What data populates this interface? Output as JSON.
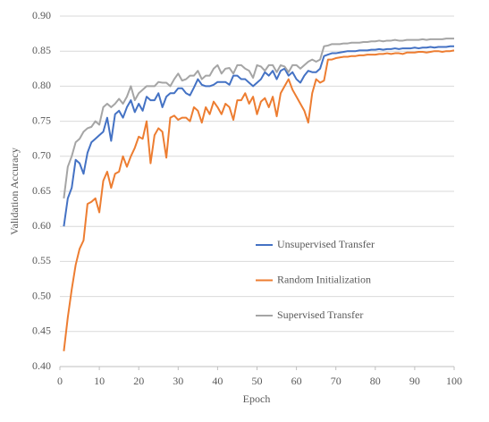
{
  "chart_data": {
    "type": "line",
    "x_label": "Epoch",
    "y_label": "Validation Accuracy",
    "x": [
      1,
      2,
      3,
      4,
      5,
      6,
      7,
      8,
      9,
      10,
      11,
      12,
      13,
      14,
      15,
      16,
      17,
      18,
      19,
      20,
      21,
      22,
      23,
      24,
      25,
      26,
      27,
      28,
      29,
      30,
      31,
      32,
      33,
      34,
      35,
      36,
      37,
      38,
      39,
      40,
      41,
      42,
      43,
      44,
      45,
      46,
      47,
      48,
      49,
      50,
      51,
      52,
      53,
      54,
      55,
      56,
      57,
      58,
      59,
      60,
      61,
      62,
      63,
      64,
      65,
      66,
      67,
      68,
      69,
      70,
      71,
      72,
      73,
      74,
      75,
      76,
      77,
      78,
      79,
      80,
      81,
      82,
      83,
      84,
      85,
      86,
      87,
      88,
      89,
      90,
      91,
      92,
      93,
      94,
      95,
      96,
      97,
      98,
      99,
      100
    ],
    "series": [
      {
        "name": "Unsupervised Transfer",
        "color": "#4472c4",
        "values": [
          0.6,
          0.64,
          0.655,
          0.695,
          0.69,
          0.675,
          0.705,
          0.72,
          0.725,
          0.73,
          0.735,
          0.755,
          0.722,
          0.76,
          0.765,
          0.755,
          0.77,
          0.78,
          0.763,
          0.775,
          0.765,
          0.785,
          0.78,
          0.78,
          0.79,
          0.77,
          0.785,
          0.79,
          0.79,
          0.797,
          0.797,
          0.79,
          0.787,
          0.798,
          0.81,
          0.802,
          0.8,
          0.8,
          0.802,
          0.806,
          0.806,
          0.806,
          0.802,
          0.815,
          0.815,
          0.81,
          0.81,
          0.805,
          0.8,
          0.805,
          0.81,
          0.82,
          0.815,
          0.822,
          0.81,
          0.822,
          0.825,
          0.815,
          0.82,
          0.81,
          0.805,
          0.815,
          0.822,
          0.82,
          0.82,
          0.825,
          0.843,
          0.845,
          0.847,
          0.847,
          0.848,
          0.849,
          0.85,
          0.85,
          0.85,
          0.851,
          0.851,
          0.851,
          0.852,
          0.852,
          0.853,
          0.852,
          0.853,
          0.853,
          0.854,
          0.853,
          0.854,
          0.854,
          0.854,
          0.855,
          0.854,
          0.855,
          0.855,
          0.856,
          0.855,
          0.856,
          0.856,
          0.856,
          0.857,
          0.857
        ]
      },
      {
        "name": "Random Initialization",
        "color": "#ed7d31",
        "values": [
          0.422,
          0.47,
          0.51,
          0.545,
          0.568,
          0.58,
          0.632,
          0.635,
          0.64,
          0.62,
          0.665,
          0.678,
          0.655,
          0.675,
          0.678,
          0.7,
          0.685,
          0.7,
          0.712,
          0.728,
          0.725,
          0.75,
          0.69,
          0.73,
          0.74,
          0.735,
          0.698,
          0.755,
          0.758,
          0.752,
          0.755,
          0.755,
          0.75,
          0.77,
          0.765,
          0.748,
          0.77,
          0.76,
          0.778,
          0.77,
          0.76,
          0.775,
          0.77,
          0.752,
          0.78,
          0.78,
          0.79,
          0.775,
          0.785,
          0.76,
          0.778,
          0.783,
          0.77,
          0.785,
          0.757,
          0.79,
          0.8,
          0.81,
          0.795,
          0.785,
          0.775,
          0.765,
          0.748,
          0.79,
          0.81,
          0.805,
          0.808,
          0.838,
          0.838,
          0.84,
          0.841,
          0.842,
          0.842,
          0.843,
          0.843,
          0.844,
          0.844,
          0.845,
          0.845,
          0.845,
          0.846,
          0.846,
          0.847,
          0.846,
          0.847,
          0.847,
          0.846,
          0.848,
          0.848,
          0.848,
          0.849,
          0.849,
          0.848,
          0.849,
          0.85,
          0.85,
          0.849,
          0.85,
          0.85,
          0.851
        ]
      },
      {
        "name": "Supervised Transfer",
        "color": "#a5a5a5",
        "values": [
          0.64,
          0.685,
          0.7,
          0.72,
          0.725,
          0.735,
          0.74,
          0.742,
          0.75,
          0.745,
          0.77,
          0.775,
          0.77,
          0.775,
          0.782,
          0.775,
          0.785,
          0.8,
          0.78,
          0.79,
          0.795,
          0.8,
          0.8,
          0.8,
          0.806,
          0.805,
          0.805,
          0.8,
          0.81,
          0.818,
          0.808,
          0.81,
          0.815,
          0.815,
          0.822,
          0.81,
          0.815,
          0.815,
          0.825,
          0.83,
          0.818,
          0.825,
          0.826,
          0.818,
          0.83,
          0.83,
          0.825,
          0.822,
          0.812,
          0.83,
          0.828,
          0.822,
          0.83,
          0.83,
          0.82,
          0.83,
          0.828,
          0.82,
          0.83,
          0.83,
          0.825,
          0.83,
          0.835,
          0.838,
          0.835,
          0.838,
          0.857,
          0.858,
          0.86,
          0.86,
          0.86,
          0.861,
          0.861,
          0.862,
          0.862,
          0.862,
          0.863,
          0.863,
          0.864,
          0.864,
          0.865,
          0.864,
          0.865,
          0.865,
          0.866,
          0.865,
          0.865,
          0.866,
          0.866,
          0.866,
          0.866,
          0.867,
          0.866,
          0.867,
          0.867,
          0.867,
          0.867,
          0.868,
          0.868,
          0.868
        ]
      }
    ],
    "xlim": [
      0,
      100
    ],
    "xticks": [
      0,
      10,
      20,
      30,
      40,
      50,
      60,
      70,
      80,
      90,
      100
    ],
    "ylim": [
      0.4,
      0.9
    ],
    "yticks": [
      {
        "value": 0.4,
        "label": "0.40"
      },
      {
        "value": 0.45,
        "label": "0.45"
      },
      {
        "value": 0.5,
        "label": "0.50"
      },
      {
        "value": 0.55,
        "label": "0.55"
      },
      {
        "value": 0.6,
        "label": "0.60"
      },
      {
        "value": 0.65,
        "label": "0.65"
      },
      {
        "value": 0.7,
        "label": "0.70"
      },
      {
        "value": 0.75,
        "label": "0.75"
      },
      {
        "value": 0.8,
        "label": "0.80"
      },
      {
        "value": 0.85,
        "label": "0.85"
      },
      {
        "value": 0.9,
        "label": "0.90"
      }
    ],
    "grid": true
  }
}
